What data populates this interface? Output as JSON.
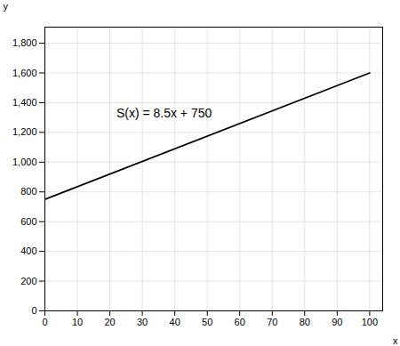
{
  "chart_data": {
    "type": "line",
    "x_label": "x",
    "y_label": "y",
    "x": [
      0,
      100
    ],
    "series": [
      {
        "color": "#000000",
        "values": [
          750,
          1600
        ]
      }
    ],
    "annotations": [
      {
        "text": "S(x) = 8.5x + 750",
        "x": 22,
        "y": 1330
      }
    ],
    "xlim": [
      0,
      104
    ],
    "ylim": [
      0,
      1908
    ],
    "xticks": [
      0,
      10,
      20,
      30,
      40,
      50,
      60,
      70,
      80,
      90,
      100
    ],
    "yticks": [
      0,
      200,
      400,
      600,
      800,
      {
        "value": 1000,
        "label": "1,000"
      },
      {
        "value": 1200,
        "label": "1,200"
      },
      {
        "value": 1400,
        "label": "1,400"
      },
      {
        "value": 1600,
        "label": "1,600"
      },
      {
        "value": 1800,
        "label": "1,800"
      }
    ],
    "grid": true
  }
}
